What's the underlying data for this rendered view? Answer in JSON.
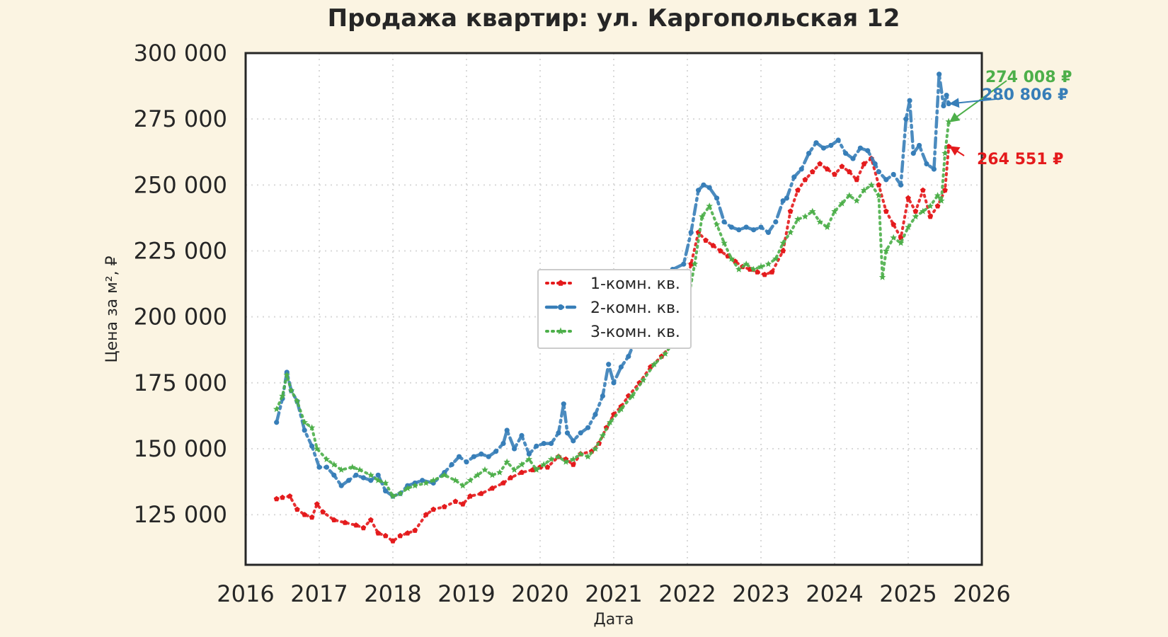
{
  "chart_data": {
    "type": "line",
    "title": "Продажа квартир: ул. Каргопольская 12",
    "xlabel": "Дата",
    "ylabel": "Цена за м², ₽",
    "xlim": [
      2016.0,
      2026.0
    ],
    "ylim": [
      106000,
      300000
    ],
    "x_ticks": [
      "2016",
      "2017",
      "2018",
      "2019",
      "2020",
      "2021",
      "2022",
      "2023",
      "2024",
      "2025",
      "2026"
    ],
    "y_ticks": [
      "125 000",
      "150 000",
      "175 000",
      "200 000",
      "225 000",
      "250 000",
      "275 000",
      "300 000"
    ],
    "y_tick_values": [
      125000,
      150000,
      175000,
      200000,
      225000,
      250000,
      275000,
      300000
    ],
    "grid": true,
    "legend": "center",
    "series": [
      {
        "name": "1-комн. кв.",
        "color": "#e41a1c",
        "marker": "pentagon",
        "x": [
          2016.42,
          2016.5,
          2016.6,
          2016.7,
          2016.8,
          2016.9,
          2016.97,
          2017.05,
          2017.2,
          2017.35,
          2017.5,
          2017.6,
          2017.7,
          2017.8,
          2017.9,
          2018.0,
          2018.1,
          2018.2,
          2018.3,
          2018.45,
          2018.55,
          2018.7,
          2018.85,
          2018.95,
          2019.05,
          2019.2,
          2019.35,
          2019.5,
          2019.6,
          2019.75,
          2019.9,
          2020.0,
          2020.1,
          2020.25,
          2020.35,
          2020.45,
          2020.55,
          2020.7,
          2020.8,
          2020.9,
          2021.0,
          2021.1,
          2021.2,
          2021.35,
          2021.5,
          2021.65,
          2021.8,
          2021.95,
          2022.05,
          2022.15,
          2022.25,
          2022.35,
          2022.45,
          2022.55,
          2022.65,
          2022.75,
          2022.85,
          2022.95,
          2023.05,
          2023.15,
          2023.3,
          2023.4,
          2023.5,
          2023.6,
          2023.7,
          2023.8,
          2023.9,
          2024.0,
          2024.1,
          2024.2,
          2024.3,
          2024.4,
          2024.5,
          2024.6,
          2024.7,
          2024.8,
          2024.9,
          2025.0,
          2025.1,
          2025.2,
          2025.3,
          2025.4,
          2025.5,
          2025.55
        ],
        "y": [
          131000,
          131500,
          132000,
          127000,
          125000,
          124000,
          129000,
          126000,
          123000,
          122000,
          121000,
          120000,
          123000,
          118000,
          117000,
          115000,
          117000,
          118000,
          119000,
          125000,
          127000,
          128000,
          130000,
          129000,
          132000,
          133000,
          135000,
          137000,
          139000,
          141000,
          142000,
          143000,
          143000,
          147000,
          146000,
          144000,
          148000,
          149000,
          152000,
          158000,
          163000,
          166000,
          170000,
          175000,
          181000,
          185000,
          190000,
          208000,
          220000,
          232000,
          229000,
          227000,
          225000,
          223000,
          221000,
          219000,
          218000,
          217000,
          216000,
          217000,
          225000,
          240000,
          248000,
          252000,
          255000,
          258000,
          256000,
          254000,
          257000,
          255000,
          252000,
          258000,
          260000,
          250000,
          240000,
          235000,
          230000,
          245000,
          240000,
          248000,
          238000,
          242000,
          248000,
          264551
        ]
      },
      {
        "name": "2-комн. кв.",
        "color": "#377eb8",
        "marker": "circle",
        "x": [
          2016.42,
          2016.5,
          2016.56,
          2016.62,
          2016.7,
          2016.8,
          2016.9,
          2017.0,
          2017.1,
          2017.2,
          2017.3,
          2017.4,
          2017.5,
          2017.6,
          2017.7,
          2017.8,
          2017.9,
          2018.0,
          2018.1,
          2018.2,
          2018.3,
          2018.4,
          2018.55,
          2018.7,
          2018.8,
          2018.9,
          2019.0,
          2019.1,
          2019.2,
          2019.3,
          2019.4,
          2019.5,
          2019.55,
          2019.65,
          2019.75,
          2019.85,
          2019.95,
          2020.05,
          2020.15,
          2020.25,
          2020.32,
          2020.37,
          2020.45,
          2020.55,
          2020.65,
          2020.75,
          2020.85,
          2020.93,
          2021.0,
          2021.1,
          2021.2,
          2021.35,
          2021.5,
          2021.65,
          2021.8,
          2021.95,
          2022.05,
          2022.15,
          2022.22,
          2022.3,
          2022.4,
          2022.5,
          2022.6,
          2022.7,
          2022.8,
          2022.9,
          2023.0,
          2023.1,
          2023.2,
          2023.3,
          2023.35,
          2023.45,
          2023.55,
          2023.65,
          2023.75,
          2023.85,
          2023.95,
          2024.05,
          2024.15,
          2024.25,
          2024.35,
          2024.45,
          2024.55,
          2024.6,
          2024.7,
          2024.8,
          2024.9,
          2024.97,
          2025.02,
          2025.07,
          2025.15,
          2025.25,
          2025.35,
          2025.42,
          2025.48,
          2025.52,
          2025.55
        ],
        "y": [
          160000,
          169000,
          179000,
          172000,
          168000,
          157000,
          151000,
          143000,
          143000,
          140000,
          136000,
          138000,
          140000,
          139000,
          138000,
          140000,
          134000,
          132000,
          133000,
          136000,
          137000,
          138000,
          137000,
          141000,
          144000,
          147000,
          145000,
          147000,
          148000,
          147000,
          149000,
          152000,
          157000,
          150000,
          155000,
          148000,
          151000,
          152000,
          152000,
          156000,
          167000,
          156000,
          153000,
          156000,
          158000,
          163000,
          170000,
          182000,
          175000,
          181000,
          185000,
          195000,
          205000,
          212000,
          218000,
          220000,
          232000,
          248000,
          250000,
          249000,
          245000,
          236000,
          234000,
          233000,
          234000,
          233000,
          234000,
          232000,
          236000,
          244000,
          245000,
          253000,
          256000,
          262000,
          266000,
          264000,
          265000,
          267000,
          262000,
          260000,
          264000,
          263000,
          258000,
          255000,
          252000,
          254000,
          250000,
          275000,
          282000,
          262000,
          265000,
          258000,
          256000,
          292000,
          280000,
          284000,
          280806
        ]
      },
      {
        "name": "3-комн. кв.",
        "color": "#4daf4a",
        "marker": "star",
        "x": [
          2016.42,
          2016.5,
          2016.56,
          2016.62,
          2016.7,
          2016.8,
          2016.9,
          2016.97,
          2017.1,
          2017.2,
          2017.3,
          2017.45,
          2017.55,
          2017.7,
          2017.8,
          2017.9,
          2018.0,
          2018.1,
          2018.2,
          2018.3,
          2018.45,
          2018.55,
          2018.7,
          2018.85,
          2018.95,
          2019.05,
          2019.15,
          2019.25,
          2019.35,
          2019.45,
          2019.55,
          2019.65,
          2019.75,
          2019.85,
          2019.95,
          2020.05,
          2020.15,
          2020.25,
          2020.35,
          2020.45,
          2020.55,
          2020.65,
          2020.75,
          2020.85,
          2020.95,
          2021.1,
          2021.25,
          2021.4,
          2021.55,
          2021.7,
          2021.85,
          2022.0,
          2022.1,
          2022.2,
          2022.3,
          2022.4,
          2022.5,
          2022.6,
          2022.7,
          2022.8,
          2022.9,
          2023.0,
          2023.1,
          2023.2,
          2023.3,
          2023.4,
          2023.5,
          2023.6,
          2023.7,
          2023.8,
          2023.9,
          2024.0,
          2024.1,
          2024.2,
          2024.3,
          2024.4,
          2024.5,
          2024.6,
          2024.65,
          2024.7,
          2024.8,
          2024.9,
          2025.0,
          2025.1,
          2025.2,
          2025.3,
          2025.4,
          2025.45,
          2025.5,
          2025.55
        ],
        "y": [
          165000,
          170000,
          178000,
          172000,
          168000,
          160000,
          158000,
          150000,
          146000,
          144000,
          142000,
          143000,
          142000,
          140000,
          138000,
          137000,
          132000,
          133000,
          135000,
          136000,
          137000,
          138000,
          140000,
          138000,
          136000,
          138000,
          140000,
          142000,
          140000,
          141000,
          145000,
          142000,
          144000,
          146000,
          142000,
          144000,
          146000,
          147000,
          145000,
          146000,
          148000,
          147000,
          150000,
          155000,
          160000,
          165000,
          170000,
          176000,
          182000,
          186000,
          192000,
          205000,
          220000,
          238000,
          242000,
          235000,
          228000,
          222000,
          218000,
          220000,
          218000,
          219000,
          220000,
          222000,
          228000,
          232000,
          237000,
          238000,
          240000,
          236000,
          234000,
          240000,
          243000,
          246000,
          244000,
          248000,
          250000,
          246000,
          215000,
          225000,
          230000,
          228000,
          234000,
          238000,
          240000,
          242000,
          246000,
          244000,
          262000,
          274008
        ]
      }
    ],
    "annotations": [
      {
        "text": "274 008 ₽",
        "color": "#4daf4a",
        "x": 2025.55,
        "y": 274008
      },
      {
        "text": "280 806 ₽",
        "color": "#377eb8",
        "x": 2025.55,
        "y": 280806
      },
      {
        "text": "264 551 ₽",
        "color": "#e41a1c",
        "x": 2025.55,
        "y": 264551
      }
    ]
  }
}
